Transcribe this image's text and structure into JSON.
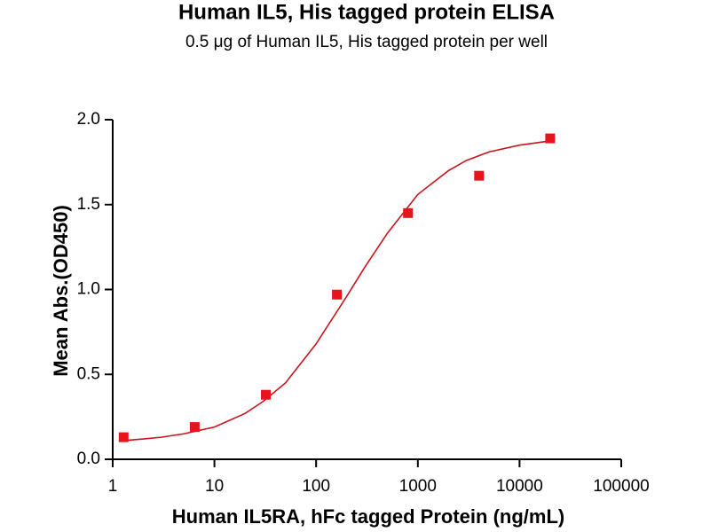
{
  "chart_data": {
    "type": "scatter",
    "title": "Human IL5, His tagged protein ELISA",
    "subtitle": "0.5 μg of Human IL5, His tagged protein per well",
    "x_label": "Human IL5RA, hFc tagged Protein (ng/mL)",
    "y_label": "Mean Abs.(OD450)",
    "x": [
      1.28,
      6.4,
      32,
      160,
      800,
      4000,
      20000
    ],
    "values": [
      0.13,
      0.19,
      0.38,
      0.97,
      1.45,
      1.67,
      1.89
    ],
    "color": "#e8141c",
    "fit_x": [
      1.28,
      2,
      3,
      5,
      10,
      20,
      30,
      50,
      100,
      200,
      300,
      500,
      1000,
      2000,
      3000,
      5000,
      10000,
      20000
    ],
    "fit_values": [
      0.11,
      0.12,
      0.13,
      0.15,
      0.19,
      0.27,
      0.34,
      0.45,
      0.68,
      0.96,
      1.13,
      1.33,
      1.56,
      1.7,
      1.76,
      1.81,
      1.85,
      1.875
    ],
    "fit_color": "#c8141c",
    "x_log": true,
    "xlim": [
      1,
      100000
    ],
    "xticks": [
      1,
      10,
      100,
      1000,
      10000,
      100000
    ],
    "ylim": [
      0,
      2.0
    ],
    "yticks": [
      {
        "value": 0,
        "label": "0.0"
      },
      {
        "value": 0.5,
        "label": "0.5"
      },
      {
        "value": 1.0,
        "label": "1.0"
      },
      {
        "value": 1.5,
        "label": "1.5"
      },
      {
        "value": 2.0,
        "label": "2.0"
      }
    ]
  }
}
